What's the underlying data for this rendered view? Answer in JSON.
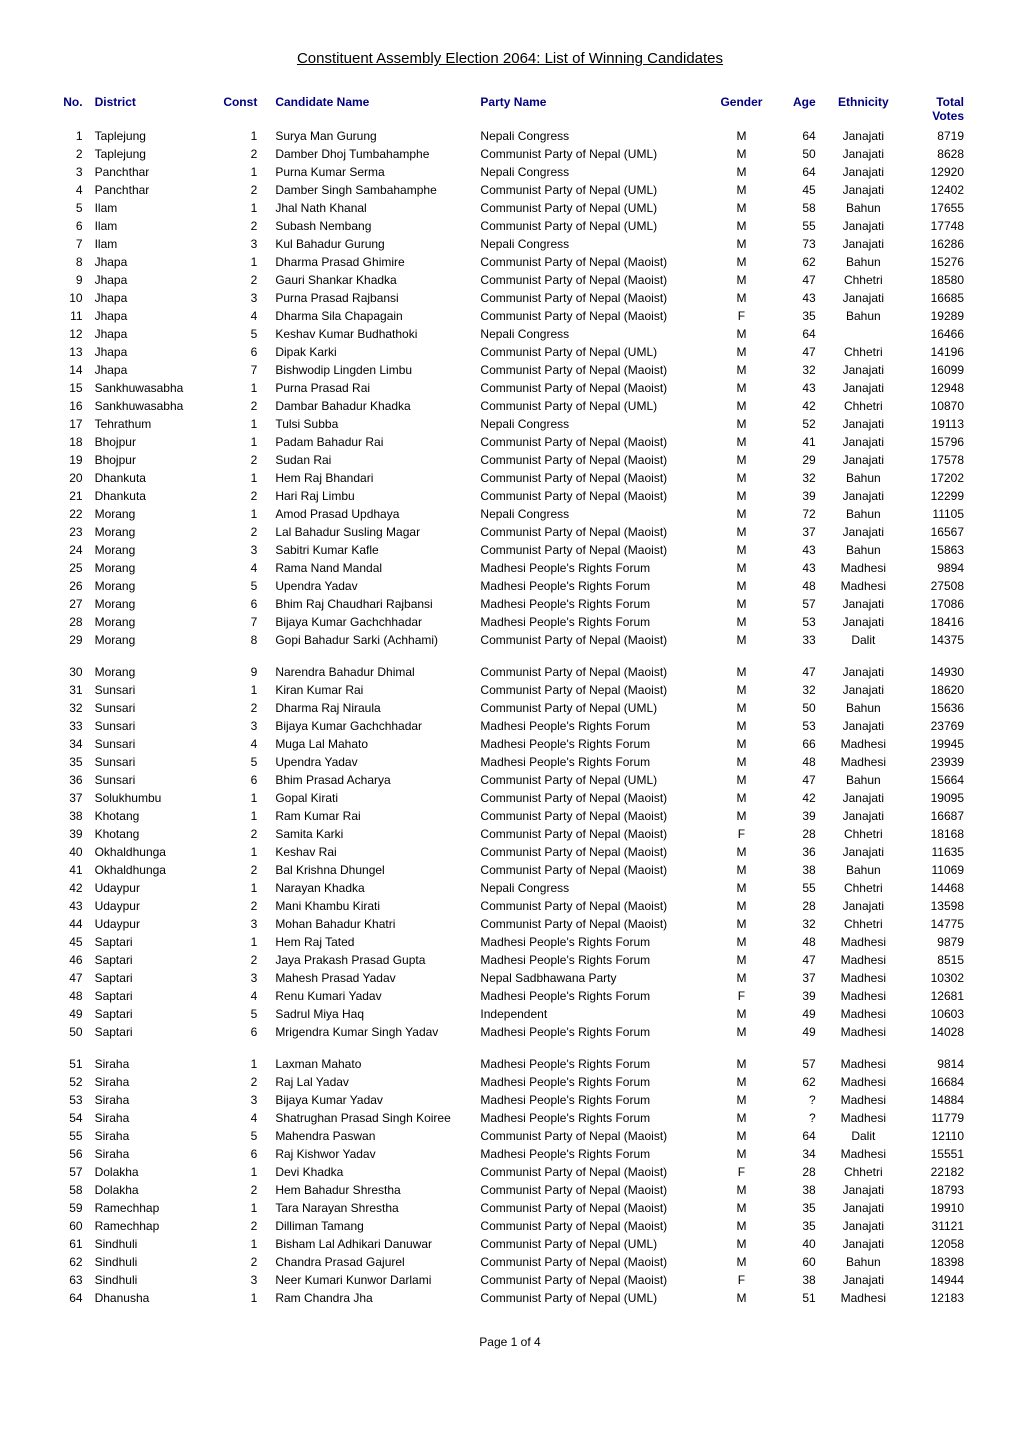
{
  "title": "Constituent Assembly Election 2064: List of Winning Candidates",
  "footer": "Page 1 of 4",
  "columns": [
    "No.",
    "District",
    "Const",
    "Candidate Name",
    "Party Name",
    "Gender",
    "Age",
    "Ethnicity",
    "Total Votes"
  ],
  "rows": [
    [
      1,
      "Taplejung",
      1,
      "Surya Man Gurung",
      "Nepali Congress",
      "M",
      64,
      "Janajati",
      8719
    ],
    [
      2,
      "Taplejung",
      2,
      "Damber Dhoj Tumbahamphe",
      "Communist Party of Nepal (UML)",
      "M",
      50,
      "Janajati",
      8628
    ],
    [
      3,
      "Panchthar",
      1,
      "Purna Kumar Serma",
      "Nepali Congress",
      "M",
      64,
      "Janajati",
      12920
    ],
    [
      4,
      "Panchthar",
      2,
      "Damber Singh Sambahamphe",
      "Communist Party of Nepal (UML)",
      "M",
      45,
      "Janajati",
      12402
    ],
    [
      5,
      "Ilam",
      1,
      "Jhal Nath Khanal",
      "Communist Party of Nepal (UML)",
      "M",
      58,
      "Bahun",
      17655
    ],
    [
      6,
      "Ilam",
      2,
      "Subash Nembang",
      "Communist Party of Nepal (UML)",
      "M",
      55,
      "Janajati",
      17748
    ],
    [
      7,
      "Ilam",
      3,
      "Kul Bahadur Gurung",
      "Nepali Congress",
      "M",
      73,
      "Janajati",
      16286
    ],
    [
      8,
      "Jhapa",
      1,
      "Dharma Prasad Ghimire",
      "Communist Party of Nepal (Maoist)",
      "M",
      62,
      "Bahun",
      15276
    ],
    [
      9,
      "Jhapa",
      2,
      "Gauri Shankar Khadka",
      "Communist Party of Nepal (Maoist)",
      "M",
      47,
      "Chhetri",
      18580
    ],
    [
      10,
      "Jhapa",
      3,
      "Purna Prasad Rajbansi",
      "Communist Party of Nepal (Maoist)",
      "M",
      43,
      "Janajati",
      16685
    ],
    [
      11,
      "Jhapa",
      4,
      "Dharma Sila Chapagain",
      "Communist Party of Nepal (Maoist)",
      "F",
      35,
      "Bahun",
      19289
    ],
    [
      12,
      "Jhapa",
      5,
      "Keshav Kumar Budhathoki",
      "Nepali Congress",
      "M",
      64,
      "",
      16466
    ],
    [
      13,
      "Jhapa",
      6,
      "Dipak Karki",
      "Communist Party of Nepal (UML)",
      "M",
      47,
      "Chhetri",
      14196
    ],
    [
      14,
      "Jhapa",
      7,
      "Bishwodip Lingden Limbu",
      "Communist Party of Nepal (Maoist)",
      "M",
      32,
      "Janajati",
      16099
    ],
    [
      15,
      "Sankhuwasabha",
      1,
      "Purna Prasad Rai",
      "Communist Party of Nepal (Maoist)",
      "M",
      43,
      "Janajati",
      12948
    ],
    [
      16,
      "Sankhuwasabha",
      2,
      "Dambar Bahadur Khadka",
      "Communist Party of Nepal (UML)",
      "M",
      42,
      "Chhetri",
      10870
    ],
    [
      17,
      "Tehrathum",
      1,
      "Tulsi Subba",
      "Nepali Congress",
      "M",
      52,
      "Janajati",
      19113
    ],
    [
      18,
      "Bhojpur",
      1,
      "Padam Bahadur Rai",
      "Communist Party of Nepal (Maoist)",
      "M",
      41,
      "Janajati",
      15796
    ],
    [
      19,
      "Bhojpur",
      2,
      "Sudan Rai",
      "Communist Party of Nepal (Maoist)",
      "M",
      29,
      "Janajati",
      17578
    ],
    [
      20,
      "Dhankuta",
      1,
      "Hem Raj Bhandari",
      "Communist Party of Nepal (Maoist)",
      "M",
      32,
      "Bahun",
      17202
    ],
    [
      21,
      "Dhankuta",
      2,
      "Hari Raj Limbu",
      "Communist Party of Nepal (Maoist)",
      "M",
      39,
      "Janajati",
      12299
    ],
    [
      22,
      "Morang",
      1,
      "Amod Prasad Updhaya",
      "Nepali Congress",
      "M",
      72,
      "Bahun",
      11105
    ],
    [
      23,
      "Morang",
      2,
      "Lal Bahadur Susling Magar",
      "Communist Party of Nepal (Maoist)",
      "M",
      37,
      "Janajati",
      16567
    ],
    [
      24,
      "Morang",
      3,
      "Sabitri Kumar Kafle",
      "Communist Party of Nepal (Maoist)",
      "M",
      43,
      "Bahun",
      15863
    ],
    [
      25,
      "Morang",
      4,
      "Rama Nand Mandal",
      "Madhesi People's Rights Forum",
      "M",
      43,
      "Madhesi",
      9894
    ],
    [
      26,
      "Morang",
      5,
      "Upendra Yadav",
      "Madhesi People's Rights Forum",
      "M",
      48,
      "Madhesi",
      27508
    ],
    [
      27,
      "Morang",
      6,
      "Bhim Raj Chaudhari Rajbansi",
      "Madhesi People's Rights Forum",
      "M",
      57,
      "Janajati",
      17086
    ],
    [
      28,
      "Morang",
      7,
      "Bijaya Kumar Gachchhadar",
      "Madhesi People's Rights Forum",
      "M",
      53,
      "Janajati",
      18416
    ],
    [
      29,
      "Morang",
      8,
      "Gopi Bahadur Sarki (Achhami)",
      "Communist Party of Nepal (Maoist)",
      "M",
      33,
      "Dalit",
      14375
    ],
    [
      30,
      "Morang",
      9,
      "Narendra Bahadur Dhimal",
      "Communist Party of Nepal (Maoist)",
      "M",
      47,
      "Janajati",
      14930
    ],
    [
      31,
      "Sunsari",
      1,
      "Kiran Kumar Rai",
      "Communist Party of Nepal (Maoist)",
      "M",
      32,
      "Janajati",
      18620
    ],
    [
      32,
      "Sunsari",
      2,
      "Dharma Raj Niraula",
      "Communist Party of Nepal (UML)",
      "M",
      50,
      "Bahun",
      15636
    ],
    [
      33,
      "Sunsari",
      3,
      "Bijaya Kumar Gachchhadar",
      "Madhesi People's Rights Forum",
      "M",
      53,
      "Janajati",
      23769
    ],
    [
      34,
      "Sunsari",
      4,
      "Muga Lal Mahato",
      "Madhesi People's Rights Forum",
      "M",
      66,
      "Madhesi",
      19945
    ],
    [
      35,
      "Sunsari",
      5,
      "Upendra Yadav",
      "Madhesi People's Rights Forum",
      "M",
      48,
      "Madhesi",
      23939
    ],
    [
      36,
      "Sunsari",
      6,
      "Bhim Prasad Acharya",
      "Communist Party of Nepal (UML)",
      "M",
      47,
      "Bahun",
      15664
    ],
    [
      37,
      "Solukhumbu",
      1,
      "Gopal Kirati",
      "Communist Party of Nepal (Maoist)",
      "M",
      42,
      "Janajati",
      19095
    ],
    [
      38,
      "Khotang",
      1,
      "Ram Kumar Rai",
      "Communist Party of Nepal (Maoist)",
      "M",
      39,
      "Janajati",
      16687
    ],
    [
      39,
      "Khotang",
      2,
      "Samita Karki",
      "Communist Party of Nepal (Maoist)",
      "F",
      28,
      "Chhetri",
      18168
    ],
    [
      40,
      "Okhaldhunga",
      1,
      "Keshav Rai",
      "Communist Party of Nepal (Maoist)",
      "M",
      36,
      "Janajati",
      11635
    ],
    [
      41,
      "Okhaldhunga",
      2,
      "Bal Krishna Dhungel",
      "Communist Party of Nepal (Maoist)",
      "M",
      38,
      "Bahun",
      11069
    ],
    [
      42,
      "Udaypur",
      1,
      "Narayan Khadka",
      "Nepali Congress",
      "M",
      55,
      "Chhetri",
      14468
    ],
    [
      43,
      "Udaypur",
      2,
      "Mani Khambu Kirati",
      "Communist Party of Nepal (Maoist)",
      "M",
      28,
      "Janajati",
      13598
    ],
    [
      44,
      "Udaypur",
      3,
      "Mohan Bahadur Khatri",
      "Communist Party of Nepal (Maoist)",
      "M",
      32,
      "Chhetri",
      14775
    ],
    [
      45,
      "Saptari",
      1,
      "Hem Raj Tated",
      "Madhesi People's Rights Forum",
      "M",
      48,
      "Madhesi",
      9879
    ],
    [
      46,
      "Saptari",
      2,
      "Jaya Prakash Prasad Gupta",
      "Madhesi People's Rights Forum",
      "M",
      47,
      "Madhesi",
      8515
    ],
    [
      47,
      "Saptari",
      3,
      "Mahesh Prasad Yadav",
      "Nepal Sadbhawana Party",
      "M",
      37,
      "Madhesi",
      10302
    ],
    [
      48,
      "Saptari",
      4,
      "Renu Kumari Yadav",
      "Madhesi People's Rights Forum",
      "F",
      39,
      "Madhesi",
      12681
    ],
    [
      49,
      "Saptari",
      5,
      "Sadrul Miya Haq",
      "Independent",
      "M",
      49,
      "Madhesi",
      10603
    ],
    [
      50,
      "Saptari",
      6,
      "Mrigendra Kumar Singh Yadav",
      "Madhesi People's Rights Forum",
      "M",
      49,
      "Madhesi",
      14028
    ],
    [
      51,
      "Siraha",
      1,
      "Laxman Mahato",
      "Madhesi People's Rights Forum",
      "M",
      57,
      "Madhesi",
      9814
    ],
    [
      52,
      "Siraha",
      2,
      "Raj Lal Yadav",
      "Madhesi People's Rights Forum",
      "M",
      62,
      "Madhesi",
      16684
    ],
    [
      53,
      "Siraha",
      3,
      "Bijaya Kumar Yadav",
      "Madhesi People's Rights Forum",
      "M",
      "?",
      "Madhesi",
      14884
    ],
    [
      54,
      "Siraha",
      4,
      "Shatrughan Prasad Singh Koiree",
      "Madhesi People's Rights Forum",
      "M",
      "?",
      "Madhesi",
      11779
    ],
    [
      55,
      "Siraha",
      5,
      "Mahendra Paswan",
      "Communist Party of Nepal (Maoist)",
      "M",
      64,
      "Dalit",
      12110
    ],
    [
      56,
      "Siraha",
      6,
      "Raj Kishwor Yadav",
      "Madhesi People's Rights Forum",
      "M",
      34,
      "Madhesi",
      15551
    ],
    [
      57,
      "Dolakha",
      1,
      "Devi Khadka",
      "Communist Party of Nepal (Maoist)",
      "F",
      28,
      "Chhetri",
      22182
    ],
    [
      58,
      "Dolakha",
      2,
      "Hem Bahadur Shrestha",
      "Communist Party of Nepal (Maoist)",
      "M",
      38,
      "Janajati",
      18793
    ],
    [
      59,
      "Ramechhap",
      1,
      "Tara Narayan Shrestha",
      "Communist Party of Nepal (Maoist)",
      "M",
      35,
      "Janajati",
      19910
    ],
    [
      60,
      "Ramechhap",
      2,
      "Dilliman Tamang",
      "Communist Party of Nepal (Maoist)",
      "M",
      35,
      "Janajati",
      31121
    ],
    [
      61,
      "Sindhuli",
      1,
      "Bisham Lal Adhikari Danuwar",
      "Communist Party of Nepal (UML)",
      "M",
      40,
      "Janajati",
      12058
    ],
    [
      62,
      "Sindhuli",
      2,
      "Chandra Prasad Gajurel",
      "Communist Party of Nepal (Maoist)",
      "M",
      60,
      "Bahun",
      18398
    ],
    [
      63,
      "Sindhuli",
      3,
      "Neer Kumari Kunwor Darlami",
      "Communist Party of Nepal (Maoist)",
      "F",
      38,
      "Janajati",
      14944
    ],
    [
      64,
      "Dhanusha",
      1,
      "Ram Chandra Jha",
      "Communist Party of Nepal (UML)",
      "M",
      51,
      "Madhesi",
      12183
    ]
  ],
  "styling": {
    "header_color": "#000080",
    "body_font_size": 12,
    "title_font_size": 15,
    "background": "#ffffff",
    "text_color": "#000000",
    "column_classes": [
      "col-no",
      "col-dist",
      "col-const",
      "col-cand",
      "col-party",
      "col-gen",
      "col-age",
      "col-eth",
      "col-votes"
    ],
    "gap_after_rows": [
      29,
      50
    ]
  }
}
